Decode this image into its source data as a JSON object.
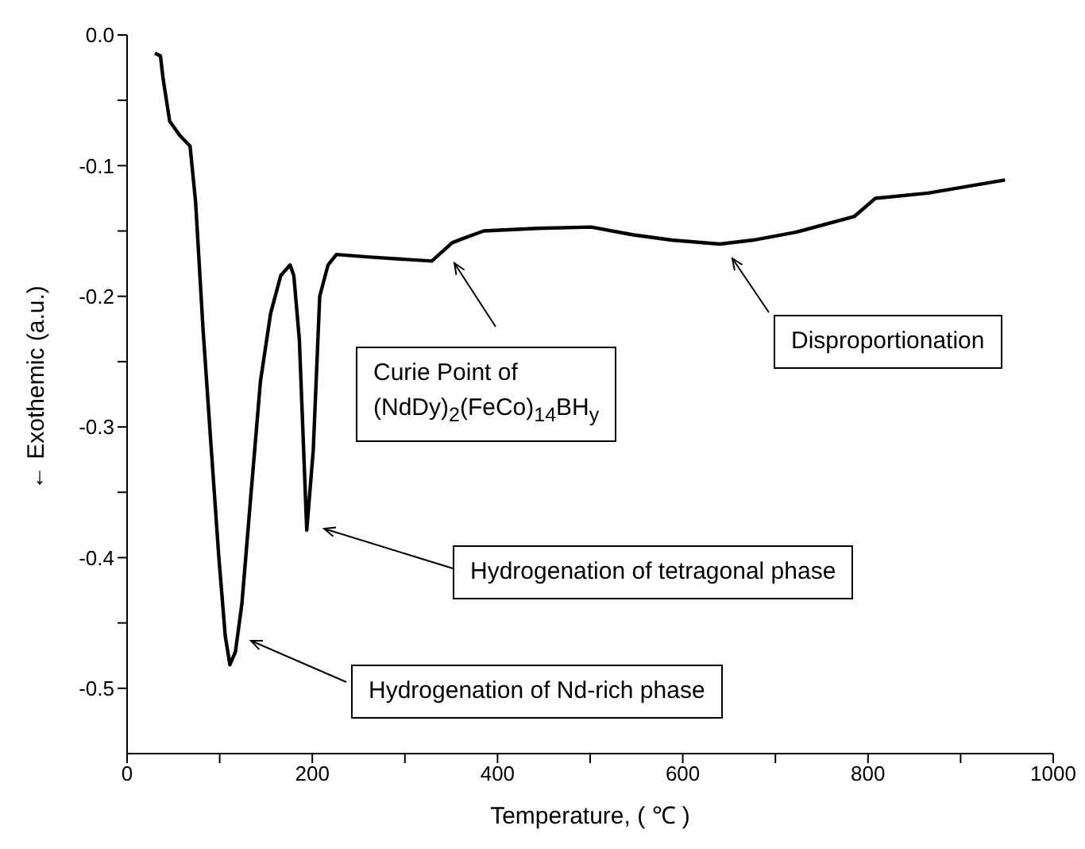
{
  "chart_data": {
    "type": "line",
    "xlabel": "Temperature, ( ℃ )",
    "ylabel": "←      Exothemic (a.u.)",
    "xlim": [
      0,
      1000
    ],
    "xticks": [
      0,
      {
        "value": 100,
        "label": null
      },
      200,
      {
        "value": 300,
        "label": null
      },
      400,
      {
        "value": 500,
        "label": null
      },
      600,
      {
        "value": 700,
        "label": null
      },
      800,
      {
        "value": 900,
        "label": null
      },
      1000
    ],
    "ylim": [
      -0.55,
      0
    ],
    "yticks": [
      {
        "value": 0,
        "label": "0.0"
      },
      {
        "value": -0.05,
        "label": null
      },
      -0.1,
      {
        "value": -0.15,
        "label": null
      },
      -0.2,
      {
        "value": -0.25,
        "label": null
      },
      -0.3,
      {
        "value": -0.35,
        "label": null
      },
      -0.4,
      {
        "value": -0.45,
        "label": null
      },
      -0.5
    ],
    "series": [
      {
        "color": "#000000",
        "x": [
          30,
          36,
          39,
          46,
          57,
          68,
          74,
          82,
          91,
          99,
          106,
          111,
          117,
          124,
          133,
          144,
          155,
          166,
          176,
          180,
          186,
          194,
          201,
          208,
          217,
          226,
          262,
          329,
          340,
          351,
          362,
          385,
          443,
          501,
          547,
          588,
          640,
          676,
          722,
          785,
          808,
          865,
          948
        ],
        "values": [
          -0.014,
          -0.016,
          -0.034,
          -0.066,
          -0.077,
          -0.085,
          -0.128,
          -0.225,
          -0.318,
          -0.399,
          -0.46,
          -0.482,
          -0.472,
          -0.435,
          -0.358,
          -0.265,
          -0.213,
          -0.184,
          -0.176,
          -0.184,
          -0.233,
          -0.379,
          -0.318,
          -0.2,
          -0.176,
          -0.168,
          -0.17,
          -0.173,
          -0.166,
          -0.159,
          -0.156,
          -0.15,
          -0.148,
          -0.147,
          -0.153,
          -0.157,
          -0.16,
          -0.157,
          -0.151,
          -0.139,
          -0.125,
          -0.121,
          -0.111
        ]
      }
    ],
    "annotations": [
      "Curie Point of\n(NdDy)$_{2}$(FeCo)$_{14}$BH$_{y}$",
      "Hydrogenation of tetragonal phase",
      "Hydrogenation of Nd-rich phase",
      "Disproportionation"
    ]
  }
}
